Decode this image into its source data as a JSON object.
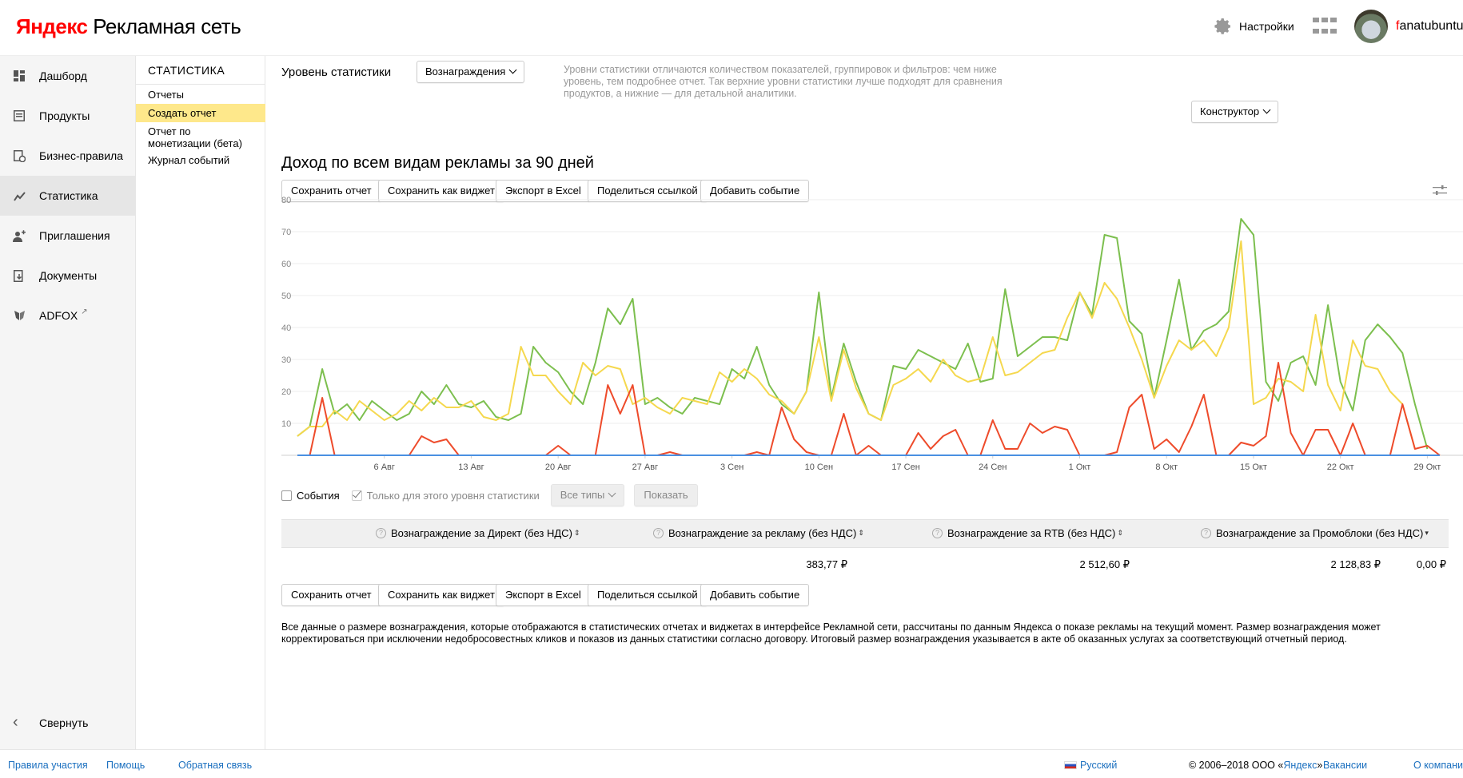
{
  "header": {
    "logo_brand": "Яндекс",
    "logo_product": "Рекламная сеть",
    "settings_label": "Настройки",
    "user_first": "f",
    "user_rest": "anatubuntu"
  },
  "leftnav": {
    "items": [
      {
        "label": "Дашборд",
        "icon": "dashboard-icon"
      },
      {
        "label": "Продукты",
        "icon": "products-icon"
      },
      {
        "label": "Бизнес-правила",
        "icon": "business-rules-icon"
      },
      {
        "label": "Статистика",
        "icon": "statistics-icon"
      },
      {
        "label": "Приглашения",
        "icon": "invite-icon"
      },
      {
        "label": "Документы",
        "icon": "documents-icon"
      },
      {
        "label": "ADFOX",
        "icon": "adfox-icon"
      }
    ],
    "active_index": 3,
    "collapse_label": "Свернуть"
  },
  "subnav": {
    "title": "СТАТИСТИКА",
    "items": [
      "Отчеты",
      "Создать отчет",
      "Отчет по монетизации (бета)",
      "Журнал событий"
    ],
    "active_index": 1
  },
  "level": {
    "label": "Уровень статистики",
    "selected": "Вознаграждения",
    "description": "Уровни статистики отличаются количеством показателей, группировок и фильтров: чем ниже уровень, тем подробнее отчет. Так верхние уровни статистики лучше подходят для сравнения продуктов, а нижние — для детальной аналитики."
  },
  "constructor_label": "Конструктор",
  "report_title": "Доход по всем видам рекламы за 90 дней",
  "actions": {
    "save_report": "Сохранить отчет",
    "save_widget": "Сохранить как виджет",
    "export_excel": "Экспорт в Excel",
    "share_link": "Поделиться ссылкой",
    "add_event": "Добавить событие"
  },
  "events": {
    "events_label": "События",
    "only_level_label": "Только для этого уровня статистики",
    "types_label": "Все типы",
    "show_label": "Показать"
  },
  "table": {
    "columns": [
      "Вознаграждение за Директ (без НДС)",
      "Вознаграждение за рекламу (без НДС)",
      "Вознаграждение за RTB (без НДС)",
      "Вознаграждение за Промоблоки (без НДС)"
    ],
    "values": [
      "383,77 ₽",
      "2 512,60 ₽",
      "2 128,83 ₽",
      "0,00 ₽"
    ]
  },
  "disclaimer": "Все данные о размере вознаграждения, которые отображаются в статистических отчетах и виджетах в интерфейсе Рекламной сети, рассчитаны по данным Яндекса о показе рекламы на текущий момент. Размер вознаграждения может корректироваться при исключении недобросовестных кликов и показов из данных статистики согласно договору. Итоговый размер вознаграждения указывается в акте об оказанных услугах за соответствующий отчетный период.",
  "footer": {
    "rules": "Правила участия",
    "help": "Помощь",
    "feedback": "Обратная связь",
    "language": "Русский",
    "copyright_prefix": "© 2006–2018  ООО «",
    "copyright_link": "Яндекс",
    "copyright_suffix": "»",
    "vacancies": "Вакансии",
    "about": "О компании"
  },
  "colors": {
    "green": "#7cbf4e",
    "yellow": "#f5d84e",
    "red": "#ee4b2b",
    "blue": "#4a90e2",
    "active_sub": "#fee88b"
  },
  "chart_data": {
    "type": "line",
    "y_ticks": [
      10,
      20,
      30,
      40,
      50,
      60,
      70,
      80
    ],
    "ylim": [
      0,
      80
    ],
    "x_tick_labels": [
      {
        "label": "6 Авг",
        "index": 7
      },
      {
        "label": "13 Авг",
        "index": 14
      },
      {
        "label": "20 Авг",
        "index": 21
      },
      {
        "label": "27 Авг",
        "index": 28
      },
      {
        "label": "3 Сен",
        "index": 35
      },
      {
        "label": "10 Сен",
        "index": 42
      },
      {
        "label": "17 Сен",
        "index": 49
      },
      {
        "label": "24 Сен",
        "index": 56
      },
      {
        "label": "1 Окт",
        "index": 63
      },
      {
        "label": "8 Окт",
        "index": 70
      },
      {
        "label": "15 Окт",
        "index": 77
      },
      {
        "label": "22 Окт",
        "index": 84
      },
      {
        "label": "29 Окт",
        "index": 91
      }
    ],
    "x_count": 95,
    "series": [
      {
        "color": "#7cbf4e",
        "values": [
          6,
          9,
          27,
          13,
          16,
          11,
          17,
          14,
          11,
          13,
          20,
          16,
          22,
          16,
          15,
          17,
          12,
          11,
          13,
          34,
          29,
          26,
          20,
          16,
          29,
          46,
          41,
          49,
          16,
          18,
          15,
          13,
          18,
          17,
          16,
          27,
          24,
          34,
          22,
          16,
          13,
          20,
          51,
          18,
          35,
          23,
          13,
          11,
          28,
          27,
          33,
          31,
          29,
          27,
          35,
          23,
          24,
          52,
          31,
          34,
          37,
          37,
          36,
          51,
          44,
          69,
          68,
          42,
          38,
          18,
          36,
          55,
          33,
          39,
          41,
          45,
          74,
          69,
          23,
          17,
          29,
          31,
          22,
          47,
          23,
          14,
          36,
          41,
          37,
          32,
          16,
          2
        ]
      },
      {
        "color": "#f5d84e",
        "values": [
          6,
          9,
          9,
          14,
          11,
          17,
          14,
          11,
          13,
          17,
          14,
          18,
          15,
          15,
          17,
          12,
          11,
          13,
          34,
          25,
          25,
          20,
          16,
          29,
          25,
          28,
          27,
          16,
          18,
          15,
          13,
          18,
          17,
          16,
          26,
          23,
          27,
          24,
          19,
          17,
          13,
          20,
          37,
          17,
          33,
          21,
          13,
          11,
          22,
          24,
          27,
          23,
          30,
          25,
          23,
          24,
          37,
          25,
          26,
          29,
          32,
          33,
          43,
          51,
          43,
          54,
          49,
          40,
          30,
          18,
          28,
          36,
          33,
          36,
          31,
          40,
          67,
          16,
          18,
          24,
          23,
          20,
          44,
          22,
          14,
          36,
          28,
          27,
          20,
          16,
          2
        ]
      },
      {
        "color": "#ee4b2b",
        "values": [
          0,
          0,
          18,
          0,
          0,
          0,
          0,
          0,
          0,
          0,
          6,
          4,
          5,
          0,
          0,
          0,
          0,
          0,
          0,
          0,
          0,
          3,
          0,
          0,
          0,
          22,
          13,
          22,
          0,
          0,
          1,
          0,
          0,
          0,
          0,
          0,
          0,
          1,
          0,
          15,
          5,
          1,
          0,
          0,
          13,
          0,
          3,
          0,
          0,
          0,
          7,
          2,
          6,
          8,
          0,
          0,
          11,
          2,
          2,
          10,
          7,
          9,
          8,
          0,
          0,
          0,
          1,
          15,
          19,
          2,
          5,
          1,
          9,
          19,
          0,
          0,
          4,
          3,
          6,
          29,
          7,
          0,
          8,
          8,
          0,
          10,
          0,
          0,
          0,
          16,
          2,
          3,
          0
        ]
      },
      {
        "color": "#4a90e2",
        "values": [
          0,
          0,
          0,
          0,
          0,
          0,
          0,
          0,
          0,
          0,
          0,
          0,
          0,
          0,
          0,
          0,
          0,
          0,
          0,
          0,
          0,
          0,
          0,
          0,
          0,
          0,
          0,
          0,
          0,
          0,
          0,
          0,
          0,
          0,
          0,
          0,
          0,
          0,
          0,
          0,
          0,
          0,
          0,
          0,
          0,
          0,
          0,
          0,
          0,
          0,
          0,
          0,
          0,
          0,
          0,
          0,
          0,
          0,
          0,
          0,
          0,
          0,
          0,
          0,
          0,
          0,
          0,
          0,
          0,
          0,
          0,
          0,
          0,
          0,
          0,
          0,
          0,
          0,
          0,
          0,
          0,
          0,
          0,
          0,
          0,
          0,
          0,
          0,
          0,
          0,
          0,
          0,
          0
        ]
      }
    ]
  }
}
